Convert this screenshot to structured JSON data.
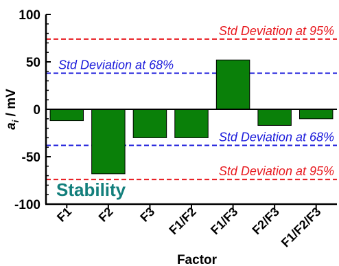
{
  "chart_data": {
    "type": "bar",
    "categories": [
      "F1",
      "F2",
      "F3",
      "F1/F2",
      "F1/F3",
      "F2/F3",
      "F1/F2/F3"
    ],
    "values": [
      -12,
      -68,
      -30,
      -30,
      52,
      -17,
      -10
    ],
    "xlabel": "Factor",
    "ylabel": {
      "symbol": "a",
      "subscript": "i",
      "unit": " / mV"
    },
    "ylim": [
      -100,
      100
    ],
    "yticks": [
      -100,
      -50,
      0,
      50,
      100
    ],
    "reference_lines": [
      {
        "value": 74,
        "label": "Std Deviation at 95%",
        "color": "#e8191f",
        "label_align": "right"
      },
      {
        "value": 38,
        "label": "Std Deviation at 68%",
        "color": "#1a1adb",
        "label_align": "left"
      },
      {
        "value": -38,
        "label": "Std Deviation at 68%",
        "color": "#1a1adb",
        "label_align": "right"
      },
      {
        "value": -74,
        "label": "Std Deviation at 95%",
        "color": "#e8191f",
        "label_align": "right"
      }
    ],
    "annotation": {
      "text": "Stability",
      "color": "#137f7c"
    },
    "bar_color": "#0a8009",
    "bar_edge_color": "#000000",
    "grid": false
  }
}
